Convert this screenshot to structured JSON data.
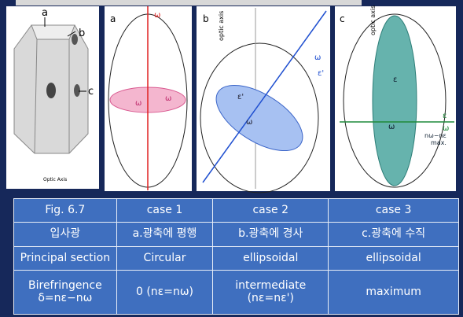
{
  "figure": {
    "panels": [
      {
        "label": "a",
        "callouts": [
          "b",
          "c"
        ],
        "caption": "Optic Axis"
      },
      {
        "label": "a",
        "symbols": [
          "ω",
          "ω",
          "ω"
        ]
      },
      {
        "label": "b",
        "axis": "optic axis",
        "symbols": [
          "ω",
          "ε'",
          "ε'",
          "ω"
        ]
      },
      {
        "label": "c",
        "axis": "optic axis",
        "symbols": [
          "ε",
          "ω",
          "ε",
          "ω",
          "nω−nε",
          "max."
        ]
      }
    ]
  },
  "table": {
    "rows": [
      [
        "Fig. 6.7",
        "case 1",
        "case 2",
        "case 3"
      ],
      [
        "입사광",
        "a.광축에 평행",
        "b.광축에 경사",
        "c.광축에 수직"
      ],
      [
        "Principal section",
        "Circular",
        "ellipsoidal",
        "ellipsoidal"
      ],
      [
        "Birefringence\nδ=nε−nω",
        "0 (nε=nω)",
        "intermediate\n(nε=nε')",
        "maximum"
      ]
    ]
  }
}
